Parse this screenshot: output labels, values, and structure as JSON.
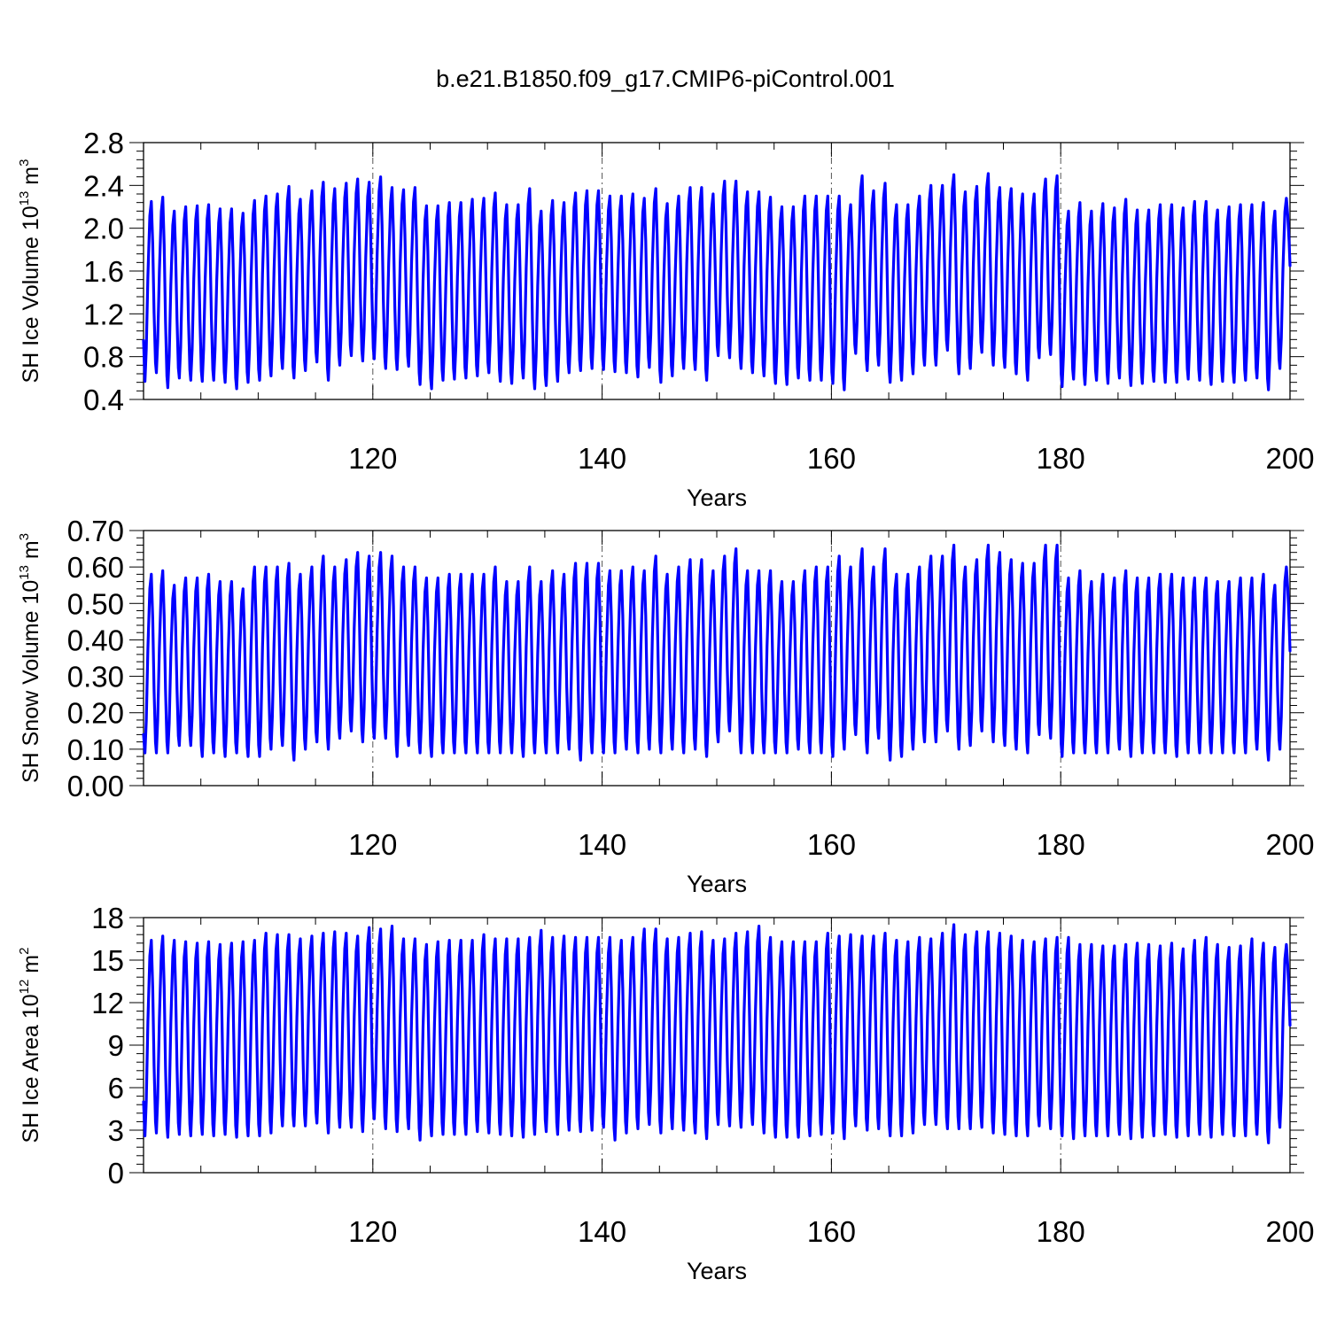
{
  "title": "b.e21.B1850.f09_g17.CMIP6-piControl.001",
  "line_color": "#0000ff",
  "chart_data": [
    {
      "type": "line",
      "ylabel": {
        "main": "SH Ice Volume 10",
        "sup1": "13",
        "mid": " m",
        "sup2": "3"
      },
      "xlabel": "Years",
      "xlim": [
        100,
        200
      ],
      "ylim": [
        0.4,
        2.8
      ],
      "yticks": [
        "0.4",
        "0.8",
        "1.2",
        "1.6",
        "2.0",
        "2.4",
        "2.8"
      ],
      "xticks": [
        "120",
        "140",
        "160",
        "180",
        "200"
      ],
      "gridlines_x": [
        120,
        140,
        160,
        180
      ],
      "series": [
        {
          "cycle_start_year": 100,
          "first_value": 0.95,
          "last_value": 1.65,
          "annual_max": [
            2.25,
            2.29,
            2.16,
            2.2,
            2.21,
            2.22,
            2.18,
            2.18,
            2.14,
            2.26,
            2.3,
            2.32,
            2.39,
            2.27,
            2.35,
            2.43,
            2.37,
            2.42,
            2.46,
            2.43,
            2.48,
            2.38,
            2.36,
            2.38,
            2.21,
            2.21,
            2.24,
            2.24,
            2.27,
            2.28,
            2.33,
            2.22,
            2.22,
            2.37,
            2.16,
            2.26,
            2.24,
            2.33,
            2.35,
            2.35,
            2.3,
            2.3,
            2.32,
            2.28,
            2.37,
            2.23,
            2.3,
            2.38,
            2.38,
            2.32,
            2.44,
            2.44,
            2.34,
            2.34,
            2.29,
            2.2,
            2.2,
            2.3,
            2.3,
            2.3,
            2.3,
            2.22,
            2.49,
            2.35,
            2.42,
            2.22,
            2.22,
            2.3,
            2.4,
            2.4,
            2.5,
            2.34,
            2.39,
            2.51,
            2.38,
            2.37,
            2.32,
            2.32,
            2.46,
            2.49,
            2.16,
            2.24,
            2.16,
            2.23,
            2.19,
            2.27,
            2.17,
            2.17,
            2.22,
            2.22,
            2.19,
            2.25,
            2.25,
            2.17,
            2.2,
            2.22,
            2.22,
            2.24,
            2.16,
            2.28
          ],
          "annual_min": [
            0.57,
            0.65,
            0.51,
            0.6,
            0.58,
            0.57,
            0.58,
            0.56,
            0.5,
            0.56,
            0.58,
            0.62,
            0.69,
            0.6,
            0.67,
            0.75,
            0.58,
            0.72,
            0.81,
            0.76,
            0.78,
            0.69,
            0.68,
            0.71,
            0.54,
            0.5,
            0.58,
            0.59,
            0.6,
            0.62,
            0.65,
            0.57,
            0.55,
            0.6,
            0.5,
            0.53,
            0.57,
            0.65,
            0.67,
            0.69,
            0.68,
            0.66,
            0.65,
            0.61,
            0.7,
            0.56,
            0.62,
            0.69,
            0.68,
            0.58,
            0.81,
            0.79,
            0.69,
            0.65,
            0.62,
            0.55,
            0.54,
            0.6,
            0.58,
            0.58,
            0.55,
            0.49,
            0.83,
            0.67,
            0.72,
            0.56,
            0.58,
            0.64,
            0.72,
            0.72,
            0.86,
            0.64,
            0.69,
            0.84,
            0.72,
            0.7,
            0.64,
            0.58,
            0.79,
            0.82,
            0.52,
            0.59,
            0.54,
            0.58,
            0.55,
            0.6,
            0.53,
            0.55,
            0.57,
            0.56,
            0.56,
            0.59,
            0.58,
            0.54,
            0.57,
            0.56,
            0.58,
            0.6,
            0.49,
            0.69
          ]
        }
      ]
    },
    {
      "type": "line",
      "ylabel": {
        "main": "SH Snow Volume 10",
        "sup1": "13",
        "mid": " m",
        "sup2": "3"
      },
      "xlabel": "Years",
      "xlim": [
        100,
        200
      ],
      "ylim": [
        0.0,
        0.7
      ],
      "yticks": [
        "0.00",
        "0.10",
        "0.20",
        "0.30",
        "0.40",
        "0.50",
        "0.60",
        "0.70"
      ],
      "xticks": [
        "120",
        "140",
        "160",
        "180",
        "200"
      ],
      "gridlines_x": [
        120,
        140,
        160,
        180
      ],
      "series": [
        {
          "cycle_start_year": 100,
          "first_value": 0.14,
          "last_value": 0.37,
          "annual_max": [
            0.58,
            0.59,
            0.55,
            0.57,
            0.57,
            0.58,
            0.56,
            0.56,
            0.54,
            0.6,
            0.6,
            0.6,
            0.61,
            0.58,
            0.6,
            0.63,
            0.6,
            0.62,
            0.64,
            0.63,
            0.64,
            0.63,
            0.6,
            0.6,
            0.57,
            0.57,
            0.58,
            0.58,
            0.58,
            0.58,
            0.6,
            0.56,
            0.56,
            0.6,
            0.56,
            0.59,
            0.58,
            0.61,
            0.61,
            0.61,
            0.59,
            0.59,
            0.6,
            0.59,
            0.63,
            0.58,
            0.6,
            0.62,
            0.62,
            0.59,
            0.63,
            0.65,
            0.59,
            0.59,
            0.59,
            0.56,
            0.56,
            0.59,
            0.6,
            0.6,
            0.63,
            0.6,
            0.65,
            0.6,
            0.65,
            0.58,
            0.58,
            0.6,
            0.63,
            0.63,
            0.66,
            0.6,
            0.62,
            0.66,
            0.64,
            0.62,
            0.61,
            0.61,
            0.66,
            0.66,
            0.57,
            0.59,
            0.56,
            0.58,
            0.57,
            0.59,
            0.57,
            0.57,
            0.58,
            0.58,
            0.57,
            0.57,
            0.57,
            0.56,
            0.56,
            0.57,
            0.57,
            0.58,
            0.55,
            0.6
          ],
          "annual_min": [
            0.09,
            0.09,
            0.09,
            0.11,
            0.11,
            0.08,
            0.09,
            0.08,
            0.09,
            0.08,
            0.08,
            0.1,
            0.11,
            0.07,
            0.1,
            0.12,
            0.1,
            0.13,
            0.15,
            0.12,
            0.13,
            0.13,
            0.08,
            0.11,
            0.09,
            0.08,
            0.09,
            0.09,
            0.09,
            0.09,
            0.09,
            0.09,
            0.09,
            0.08,
            0.09,
            0.09,
            0.09,
            0.1,
            0.07,
            0.09,
            0.09,
            0.09,
            0.1,
            0.09,
            0.1,
            0.09,
            0.1,
            0.09,
            0.1,
            0.08,
            0.12,
            0.15,
            0.09,
            0.09,
            0.09,
            0.09,
            0.09,
            0.1,
            0.09,
            0.09,
            0.08,
            0.1,
            0.14,
            0.09,
            0.13,
            0.07,
            0.08,
            0.1,
            0.12,
            0.12,
            0.15,
            0.1,
            0.11,
            0.15,
            0.12,
            0.11,
            0.1,
            0.09,
            0.14,
            0.13,
            0.08,
            0.09,
            0.09,
            0.09,
            0.09,
            0.1,
            0.08,
            0.09,
            0.09,
            0.09,
            0.08,
            0.09,
            0.09,
            0.09,
            0.09,
            0.09,
            0.09,
            0.1,
            0.07,
            0.1
          ]
        }
      ]
    },
    {
      "type": "line",
      "ylabel": {
        "main": "SH Ice Area 10",
        "sup1": "12",
        "mid": " m",
        "sup2": "2"
      },
      "xlabel": "Years",
      "xlim": [
        100,
        200
      ],
      "ylim": [
        0,
        18
      ],
      "yticks": [
        "0",
        "3",
        "6",
        "9",
        "12",
        "15",
        "18"
      ],
      "xticks": [
        "120",
        "140",
        "160",
        "180",
        "200"
      ],
      "gridlines_x": [
        120,
        140,
        160,
        180
      ],
      "series": [
        {
          "cycle_start_year": 100,
          "first_value": 5.0,
          "last_value": 10.4,
          "annual_max": [
            16.4,
            16.7,
            16.4,
            16.3,
            16.2,
            16.3,
            16.1,
            16.2,
            16.3,
            16.4,
            16.9,
            16.8,
            16.8,
            16.5,
            16.7,
            16.9,
            17.0,
            16.9,
            16.7,
            17.3,
            17.2,
            17.4,
            16.5,
            16.5,
            16.1,
            16.3,
            16.4,
            16.4,
            16.4,
            16.8,
            16.5,
            16.5,
            16.5,
            16.6,
            17.1,
            16.6,
            16.7,
            16.6,
            16.6,
            16.6,
            16.6,
            16.4,
            16.6,
            17.2,
            17.2,
            16.5,
            16.6,
            16.9,
            17.0,
            16.4,
            16.5,
            16.9,
            17.0,
            17.4,
            16.6,
            16.3,
            16.3,
            16.3,
            16.3,
            16.9,
            16.7,
            16.8,
            16.7,
            16.7,
            16.9,
            16.4,
            16.3,
            16.6,
            16.5,
            16.9,
            17.5,
            16.8,
            17.0,
            17.0,
            16.9,
            16.7,
            16.4,
            16.3,
            16.5,
            16.6,
            16.6,
            16.1,
            16.1,
            16.0,
            16.0,
            16.1,
            16.2,
            16.1,
            16.0,
            16.2,
            15.8,
            16.4,
            16.6,
            16.1,
            15.9,
            16.0,
            16.5,
            16.2,
            15.9,
            16.1
          ],
          "annual_min": [
            2.6,
            2.8,
            2.5,
            2.7,
            2.6,
            2.7,
            2.6,
            2.7,
            2.5,
            2.6,
            2.6,
            2.8,
            3.3,
            3.3,
            3.3,
            3.5,
            2.8,
            3.2,
            3.2,
            2.9,
            3.8,
            3.1,
            2.9,
            3.1,
            2.3,
            2.6,
            2.7,
            2.7,
            2.7,
            2.9,
            2.8,
            2.7,
            2.6,
            2.5,
            2.7,
            2.9,
            2.7,
            3.0,
            2.9,
            3.0,
            3.2,
            2.3,
            2.8,
            3.1,
            3.4,
            2.8,
            3.1,
            3.0,
            2.8,
            2.4,
            3.4,
            3.3,
            3.2,
            3.4,
            2.8,
            2.5,
            2.5,
            2.5,
            2.6,
            2.7,
            2.8,
            2.4,
            3.3,
            3.0,
            3.1,
            2.6,
            2.6,
            2.8,
            3.4,
            3.4,
            3.1,
            3.1,
            3.1,
            3.2,
            2.8,
            2.7,
            2.6,
            2.6,
            3.3,
            3.1,
            2.6,
            2.4,
            2.6,
            2.6,
            2.6,
            2.7,
            2.4,
            2.5,
            2.6,
            2.7,
            2.5,
            2.6,
            2.7,
            2.5,
            2.7,
            2.6,
            2.6,
            2.7,
            2.1,
            3.2
          ]
        }
      ]
    }
  ]
}
